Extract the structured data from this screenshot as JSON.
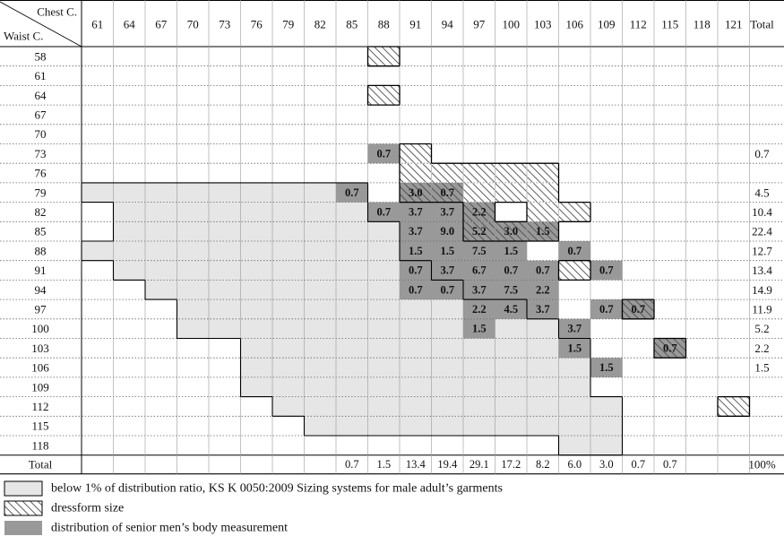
{
  "colors": {
    "light_region": "#e6e6e6",
    "senior_region": "#999999",
    "outline": "#000000",
    "hatch": "#333333",
    "dotted_rule": "#666666"
  },
  "header": {
    "chest_label": "Chest C.",
    "waist_label": "Waist C.",
    "total_label": "Total"
  },
  "chest_sizes": [
    "61",
    "64",
    "67",
    "70",
    "73",
    "76",
    "79",
    "82",
    "85",
    "88",
    "91",
    "94",
    "97",
    "100",
    "103",
    "106",
    "109",
    "112",
    "115",
    "118",
    "121"
  ],
  "waist_sizes": [
    "58",
    "61",
    "64",
    "67",
    "70",
    "73",
    "76",
    "79",
    "82",
    "85",
    "88",
    "91",
    "94",
    "97",
    "100",
    "103",
    "106",
    "109",
    "112",
    "115",
    "118"
  ],
  "light_ranges": [
    null,
    null,
    null,
    null,
    null,
    null,
    null,
    [
      0,
      8
    ],
    [
      1,
      8
    ],
    [
      1,
      9
    ],
    [
      0,
      9
    ],
    [
      1,
      10
    ],
    [
      2,
      11
    ],
    [
      3,
      13
    ],
    [
      3,
      14
    ],
    [
      5,
      15
    ],
    [
      5,
      15
    ],
    [
      5,
      15
    ],
    [
      6,
      16
    ],
    [
      7,
      16
    ],
    [
      15,
      16
    ]
  ],
  "senior_cells": [
    {
      "waist": "73",
      "chest": "88",
      "value": "0.7"
    },
    {
      "waist": "79",
      "chest": "85",
      "value": "0.7"
    },
    {
      "waist": "79",
      "chest": "91",
      "value": "3.0"
    },
    {
      "waist": "79",
      "chest": "94",
      "value": "0.7"
    },
    {
      "waist": "82",
      "chest": "88",
      "value": "0.7"
    },
    {
      "waist": "82",
      "chest": "91",
      "value": "3.7"
    },
    {
      "waist": "82",
      "chest": "94",
      "value": "3.7"
    },
    {
      "waist": "82",
      "chest": "97",
      "value": "2.2"
    },
    {
      "waist": "85",
      "chest": "91",
      "value": "3.7"
    },
    {
      "waist": "85",
      "chest": "94",
      "value": "9.0"
    },
    {
      "waist": "85",
      "chest": "97",
      "value": "5.2"
    },
    {
      "waist": "85",
      "chest": "100",
      "value": "3.0"
    },
    {
      "waist": "85",
      "chest": "103",
      "value": "1.5"
    },
    {
      "waist": "88",
      "chest": "91",
      "value": "1.5"
    },
    {
      "waist": "88",
      "chest": "94",
      "value": "1.5"
    },
    {
      "waist": "88",
      "chest": "97",
      "value": "7.5"
    },
    {
      "waist": "88",
      "chest": "100",
      "value": "1.5"
    },
    {
      "waist": "88",
      "chest": "106",
      "value": "0.7"
    },
    {
      "waist": "91",
      "chest": "91",
      "value": "0.7"
    },
    {
      "waist": "91",
      "chest": "94",
      "value": "3.7"
    },
    {
      "waist": "91",
      "chest": "97",
      "value": "6.7"
    },
    {
      "waist": "91",
      "chest": "100",
      "value": "0.7"
    },
    {
      "waist": "91",
      "chest": "103",
      "value": "0.7"
    },
    {
      "waist": "91",
      "chest": "109",
      "value": "0.7"
    },
    {
      "waist": "94",
      "chest": "91",
      "value": "0.7"
    },
    {
      "waist": "94",
      "chest": "94",
      "value": "0.7"
    },
    {
      "waist": "94",
      "chest": "97",
      "value": "3.7"
    },
    {
      "waist": "94",
      "chest": "100",
      "value": "7.5"
    },
    {
      "waist": "94",
      "chest": "103",
      "value": "2.2"
    },
    {
      "waist": "97",
      "chest": "97",
      "value": "2.2"
    },
    {
      "waist": "97",
      "chest": "100",
      "value": "4.5"
    },
    {
      "waist": "97",
      "chest": "103",
      "value": "3.7"
    },
    {
      "waist": "97",
      "chest": "109",
      "value": "0.7"
    },
    {
      "waist": "97",
      "chest": "112",
      "value": "0.7"
    },
    {
      "waist": "100",
      "chest": "97",
      "value": "1.5"
    },
    {
      "waist": "100",
      "chest": "106",
      "value": "3.7"
    },
    {
      "waist": "103",
      "chest": "106",
      "value": "1.5"
    },
    {
      "waist": "103",
      "chest": "115",
      "value": "0.7"
    },
    {
      "waist": "106",
      "chest": "109",
      "value": "1.5"
    }
  ],
  "row_totals": [
    "",
    "",
    "",
    "",
    "",
    "0.7",
    "",
    "4.5",
    "10.4",
    "22.4",
    "12.7",
    "13.4",
    "14.9",
    "11.9",
    "5.2",
    "2.2",
    "1.5",
    "",
    "",
    "",
    ""
  ],
  "footer": {
    "label": "Total",
    "col_totals": [
      "",
      "",
      "",
      "",
      "",
      "",
      "",
      "",
      "0.7",
      "1.5",
      "13.4",
      "19.4",
      "29.1",
      "17.2",
      "8.2",
      "6.0",
      "3.0",
      "0.7",
      "0.7",
      "",
      ""
    ],
    "grand_total": "100%"
  },
  "legend": [
    {
      "swatch": "light",
      "text": "below 1% of distribution ratio, KS K 0050:2009 Sizing systems for male adult’s garments"
    },
    {
      "swatch": "hatch",
      "text": "dressform size"
    },
    {
      "swatch": "senior",
      "text": "distribution of senior men’s body measurement"
    }
  ]
}
